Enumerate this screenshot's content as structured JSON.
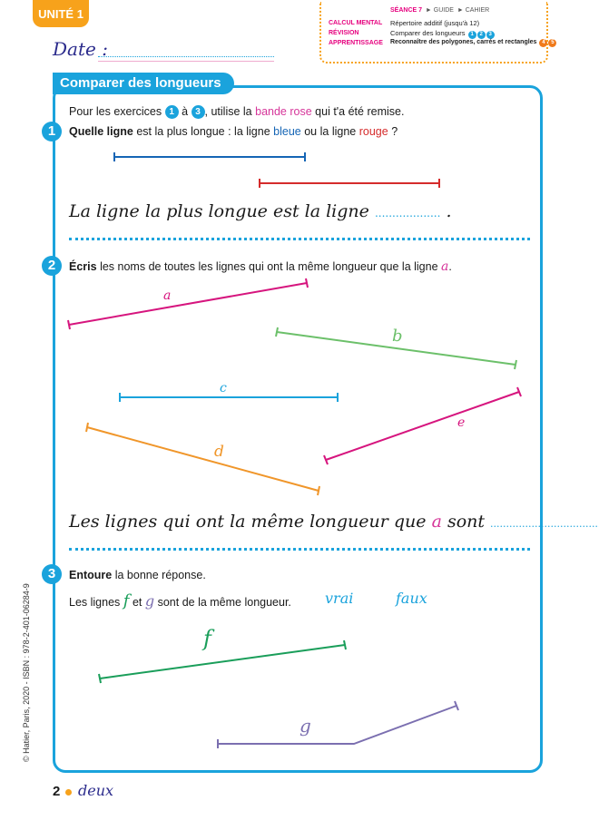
{
  "header": {
    "unit": "UNITÉ 1",
    "date_label": "Date :",
    "seance": {
      "number": "SÉANCE 7",
      "links": [
        "► GUIDE",
        "► CAHIER"
      ],
      "rows": [
        {
          "key": "CALCUL MENTAL",
          "value": "Répertoire additif (jusqu'à 12)"
        },
        {
          "key": "RÉVISION",
          "value": "Comparer des longueurs",
          "badges": [
            "1",
            "2",
            "3"
          ]
        },
        {
          "key": "APPRENTISSAGE",
          "value": "Reconnaître des polygones, carrés et rectangles",
          "badges": [
            "4",
            "5"
          ]
        }
      ]
    }
  },
  "title": "Comparer des longueurs",
  "intro": {
    "part1": "Pour les exercices",
    "num1": "1",
    "part2": "à",
    "num2": "3",
    "part3": ", utilise la",
    "highlight": "bande rose",
    "part4": "qui t'a été remise."
  },
  "ex1": {
    "num": "1",
    "bold": "Quelle ligne",
    "text1": "est la plus longue : la ligne",
    "blue_word": "bleue",
    "text2": "ou la ligne",
    "red_word": "rouge",
    "text3": "?",
    "answer_prefix": "La ligne la plus longue est la ligne",
    "answer_blank": "...................",
    "answer_end": "."
  },
  "ex2": {
    "num": "2",
    "bold": "Écris",
    "text": "les noms de toutes les lignes qui ont la même longueur que la ligne",
    "ref": "a",
    "end": ".",
    "labels": {
      "a": "a",
      "b": "b",
      "c": "c",
      "d": "d",
      "e": "e"
    },
    "answer_prefix": "Les lignes qui ont la même longueur que",
    "answer_ref": "a",
    "answer_mid": "sont",
    "answer_blank": "....................................",
    "answer_end": "."
  },
  "ex3": {
    "num": "3",
    "bold": "Entoure",
    "text": "la bonne réponse.",
    "statement_prefix": "Les lignes",
    "line_f": "f",
    "and": "et",
    "line_g": "g",
    "statement_end": "sont de la même longueur.",
    "choices": [
      "vrai",
      "faux"
    ],
    "labels": {
      "f": "f",
      "g": "g"
    }
  },
  "footer": {
    "copyright": "© Hatier, Paris, 2020 - ISBN : 978-2-401-06284-9",
    "page_number": "2",
    "page_word": "deux"
  },
  "colors": {
    "blue": "#1565b5",
    "red": "#d52b2b",
    "pink": "#d6369a",
    "green_b": "#6cc06a",
    "cyan_c": "#1aa3dc",
    "orange_d": "#f0962a",
    "magenta_e": "#d6157e",
    "green_f": "#1a9e5a",
    "purple_g": "#7b6fb0"
  }
}
